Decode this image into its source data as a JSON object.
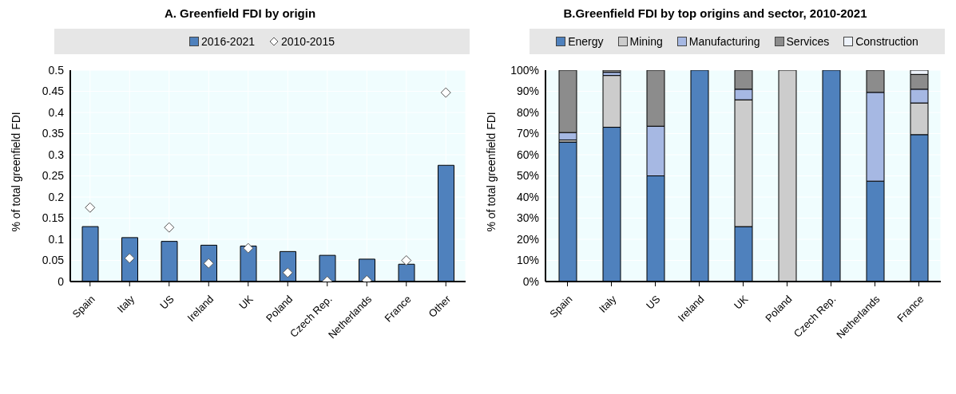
{
  "chart_data": [
    {
      "type": "bar",
      "title": "A. Greenfield FDI by origin",
      "ylabel": "% of total greenfield FDI",
      "categories": [
        "Spain",
        "Italy",
        "US",
        "Ireland",
        "UK",
        "Poland",
        "Czech Rep.",
        "Netherlands",
        "France",
        "Other"
      ],
      "series": [
        {
          "name": "2016-2021",
          "color": "#4f81bd",
          "values": [
            0.13,
            0.104,
            0.095,
            0.086,
            0.084,
            0.071,
            0.062,
            0.053,
            0.041,
            0.275
          ]
        },
        {
          "name": "2010-2015",
          "type": "scatter",
          "color": "#ffffff",
          "values": [
            0.175,
            0.055,
            0.128,
            0.043,
            0.079,
            0.021,
            0.001,
            0.003,
            0.05,
            0.447
          ]
        }
      ],
      "marker": "diamond",
      "ylim": [
        0,
        0.5
      ],
      "yticks": [
        0,
        0.05,
        0.1,
        0.15,
        0.2,
        0.25,
        0.3,
        0.35,
        0.4,
        0.45,
        0.5
      ],
      "grid": true,
      "legend": "top"
    },
    {
      "type": "bar",
      "stacked": true,
      "title": "B.Greenfield FDI by top origins and sector, 2010-2021",
      "ylabel": "% of total greenfield FDI",
      "categories": [
        "Spain",
        "Italy",
        "US",
        "Ireland",
        "UK",
        "Poland",
        "Czech Rep.",
        "Netherlands",
        "France"
      ],
      "series": [
        {
          "name": "Energy",
          "color": "#4f81bd",
          "values": [
            66,
            73,
            50,
            100,
            26,
            0,
            100,
            47.5,
            69.5
          ]
        },
        {
          "name": "Mining",
          "color": "#cccccc",
          "values": [
            1,
            24.5,
            0,
            0,
            60,
            100,
            0,
            0,
            15
          ]
        },
        {
          "name": "Manufacturing",
          "color": "#a6b8e3",
          "values": [
            3.5,
            1.5,
            23.5,
            0,
            5,
            0,
            0,
            42,
            6.5
          ]
        },
        {
          "name": "Services",
          "color": "#8c8c8c",
          "values": [
            29.5,
            1,
            26.5,
            0,
            9,
            0,
            0,
            10.5,
            7
          ]
        },
        {
          "name": "Construction",
          "color": "#eef3fb",
          "values": [
            0,
            0,
            0,
            0,
            0,
            0,
            0,
            0,
            2
          ]
        }
      ],
      "ylim": [
        0,
        100
      ],
      "yticks": [
        {
          "value": 0,
          "label": "0%"
        },
        {
          "value": 10,
          "label": "10%"
        },
        {
          "value": 20,
          "label": "20%"
        },
        {
          "value": 30,
          "label": "30%"
        },
        {
          "value": 40,
          "label": "40%"
        },
        {
          "value": 50,
          "label": "50%"
        },
        {
          "value": 60,
          "label": "60%"
        },
        {
          "value": 70,
          "label": "70%"
        },
        {
          "value": 80,
          "label": "80%"
        },
        {
          "value": 90,
          "label": "90%"
        },
        {
          "value": 100,
          "label": "100%"
        }
      ],
      "grid": true,
      "legend": "top"
    }
  ]
}
